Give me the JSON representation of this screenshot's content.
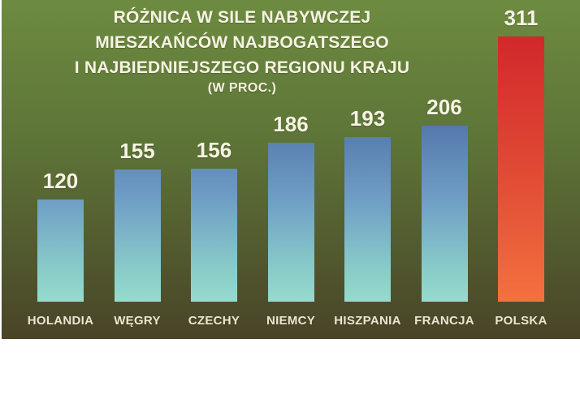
{
  "chart_data": {
    "type": "bar",
    "title": "RÓŻNICA W SILE NABYWCZEJ MIESZKAŃCÓW NAJBOGATSZEGO I NAJBIEDNIEJSZEGO REGIONU KRAJU",
    "title_lines": [
      "RÓŻNICA W SILE NABYWCZEJ",
      "MIESZKAŃCÓW NAJBOGATSZEGO",
      "I NAJBIEDNIEJSZEGO REGIONU KRAJU"
    ],
    "subtitle": "(W PROC.)",
    "categories": [
      "HOLANDIA",
      "WĘGRY",
      "CZECHY",
      "NIEMCY",
      "HISZPANIA",
      "FRANCJA",
      "POLSKA"
    ],
    "values": [
      120,
      155,
      156,
      186,
      193,
      206,
      311
    ],
    "highlight_category": "POLSKA",
    "xlabel": "",
    "ylabel": "",
    "ylim": [
      0,
      311
    ],
    "grid": false,
    "legend": false,
    "colors": {
      "bg_top": "#6d8b40",
      "bg_mid": "#5d7437",
      "bg_bottom": "#494428",
      "bar_top": "#5579ad",
      "bar_mid": "#6f9ec5",
      "bar_low": "#89ccc8",
      "bar_bottom": "#97dacd",
      "highlight_top": "#d2282b",
      "highlight_mid": "#e24f36",
      "highlight_bottom": "#f4713f",
      "text": "#f7f3e4",
      "text_dim": "#ece7d2"
    }
  }
}
